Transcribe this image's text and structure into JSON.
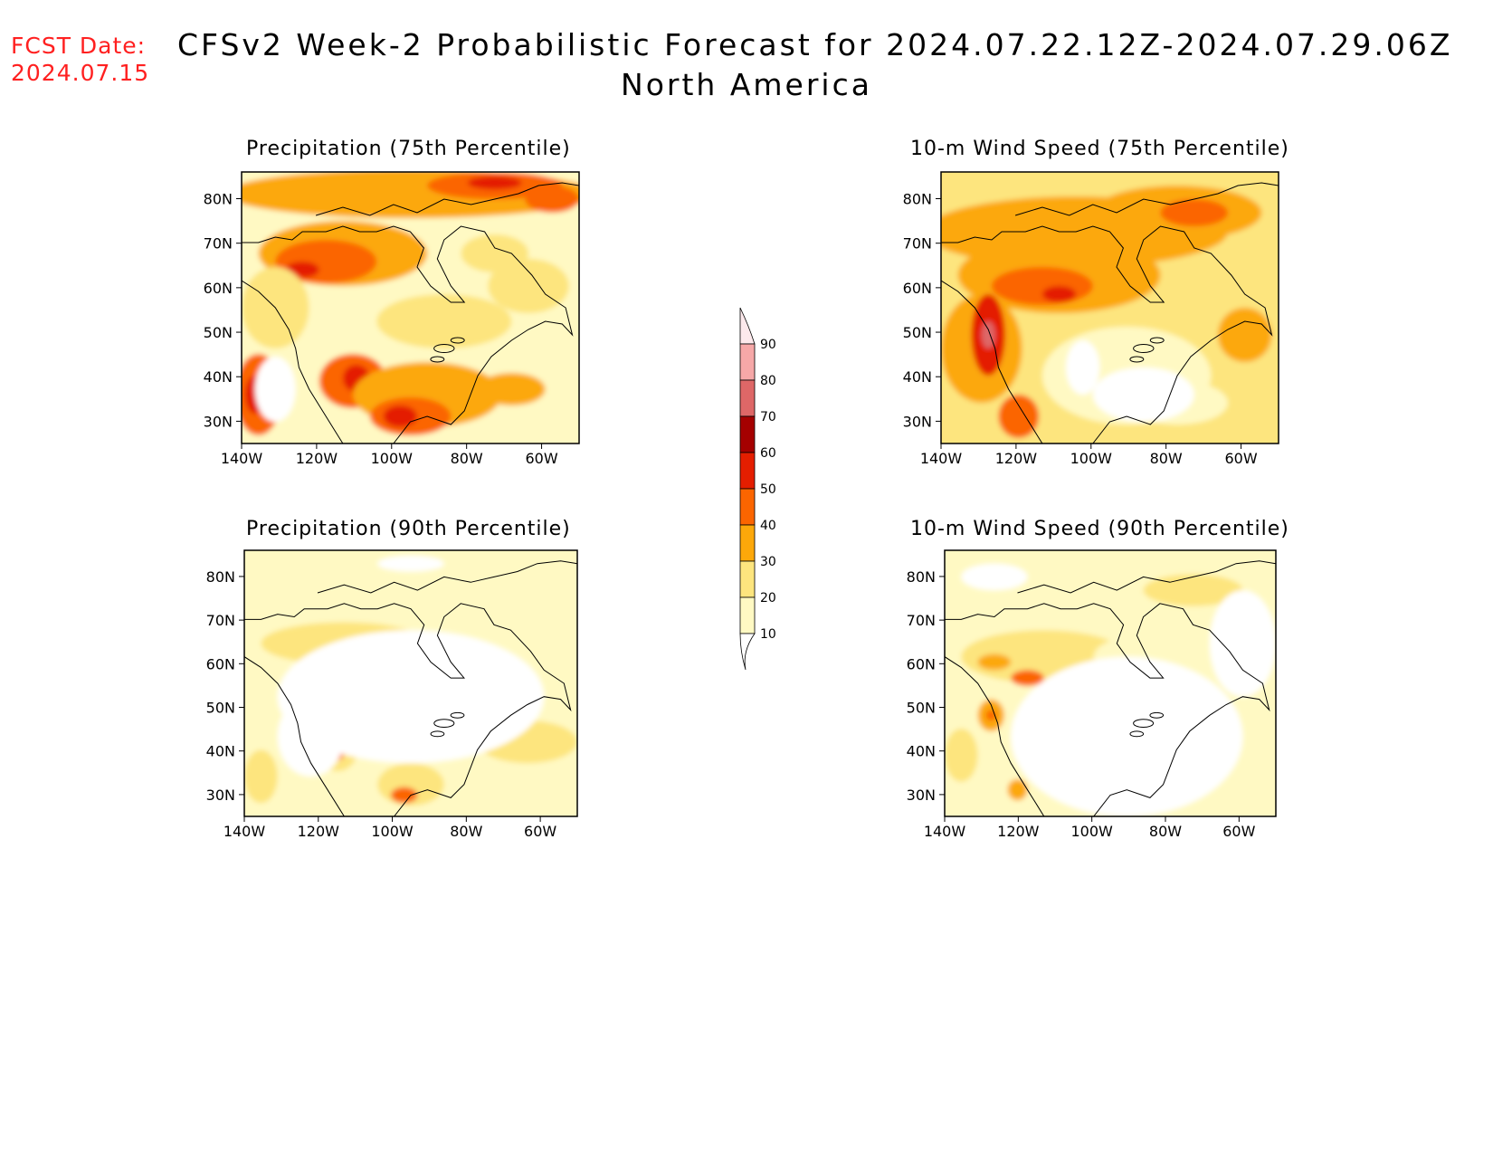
{
  "header": {
    "fcst_label": "FCST Date:",
    "fcst_date": "2024.07.15",
    "title": "CFSv2 Week-2 Probabilistic Forecast for 2024.07.22.12Z-2024.07.29.06Z",
    "region": "North America"
  },
  "colors": {
    "levels": [
      "#fff9c3",
      "#fde57e",
      "#fca80a",
      "#fb6500",
      "#e41e00",
      "#a50000",
      "#de6767",
      "#f6a8a8",
      "#fde9ec"
    ],
    "fcst_text": "#ff2020"
  },
  "colorbar": {
    "labels": [
      "10",
      "20",
      "30",
      "40",
      "50",
      "60",
      "70",
      "80",
      "90"
    ]
  },
  "panels": [
    {
      "title": "Precipitation (75th Percentile)",
      "lat_ticks": [
        "80N",
        "70N",
        "60N",
        "50N",
        "40N",
        "30N"
      ],
      "lon_ticks": [
        "140W",
        "120W",
        "100W",
        "80W",
        "60W"
      ]
    },
    {
      "title": "10-m Wind Speed (75th Percentile)",
      "lat_ticks": [
        "80N",
        "70N",
        "60N",
        "50N",
        "40N",
        "30N"
      ],
      "lon_ticks": [
        "140W",
        "120W",
        "100W",
        "80W",
        "60W"
      ]
    },
    {
      "title": "Precipitation (90th Percentile)",
      "lat_ticks": [
        "80N",
        "70N",
        "60N",
        "50N",
        "40N",
        "30N"
      ],
      "lon_ticks": [
        "140W",
        "120W",
        "100W",
        "80W",
        "60W"
      ]
    },
    {
      "title": "10-m Wind Speed (90th Percentile)",
      "lat_ticks": [
        "80N",
        "70N",
        "60N",
        "50N",
        "40N",
        "30N"
      ],
      "lon_ticks": [
        "140W",
        "120W",
        "100W",
        "80W",
        "60W"
      ]
    }
  ]
}
